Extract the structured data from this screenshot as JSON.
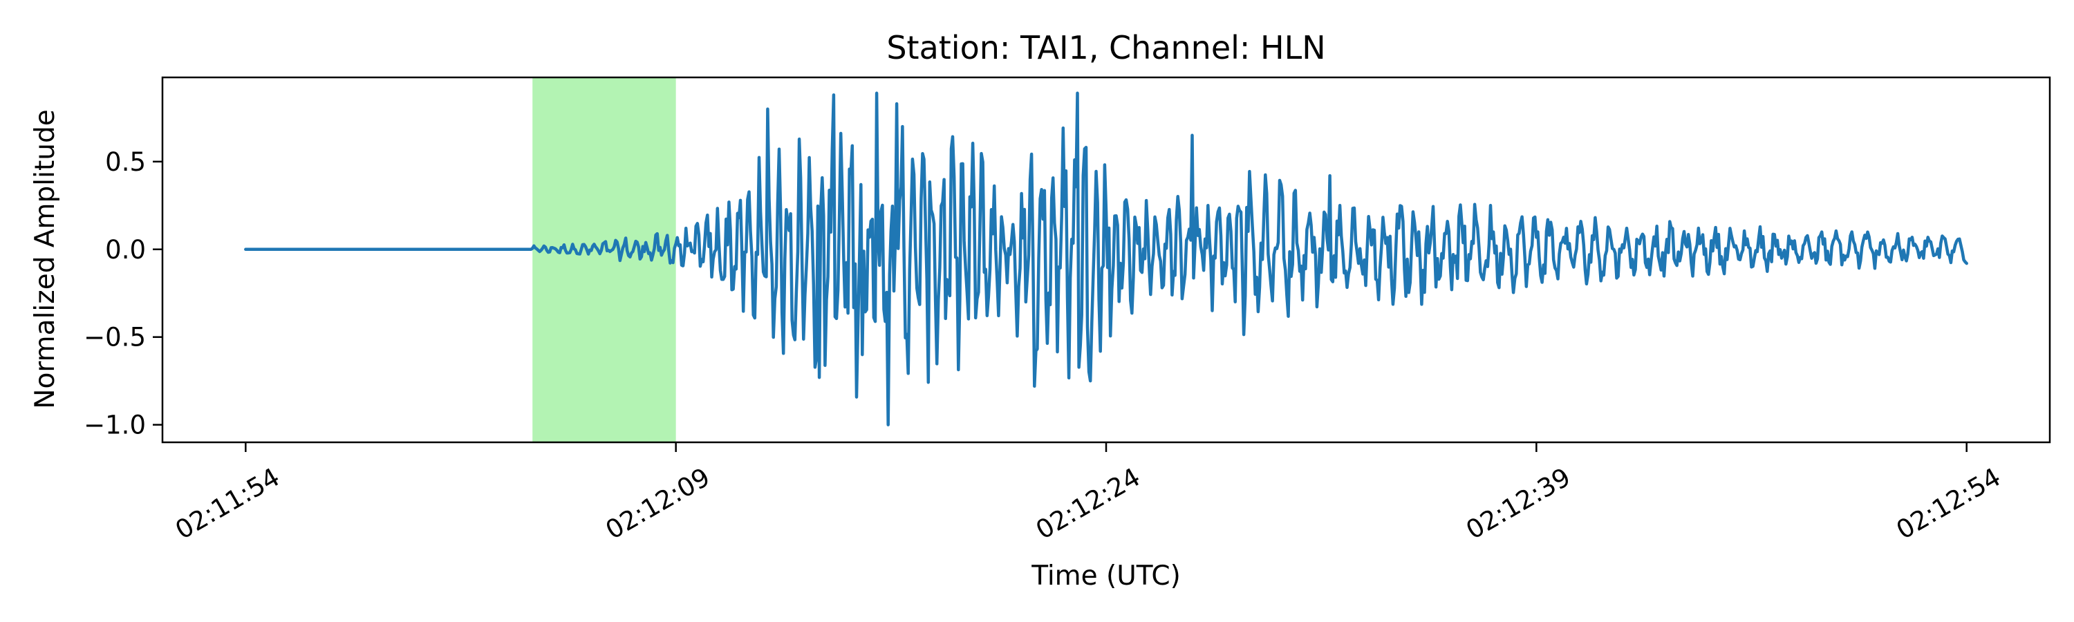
{
  "chart_data": {
    "type": "line",
    "title": "Station: TAI1, Channel: HLN",
    "xlabel": "Time (UTC)",
    "ylabel": "Normalized Amplitude",
    "x_ticks": [
      "02:11:54",
      "02:12:09",
      "02:12:24",
      "02:12:39",
      "02:12:54"
    ],
    "x_tick_values_s": [
      0,
      15,
      30,
      45,
      60
    ],
    "y_ticks": [
      "−1.0",
      "−0.5",
      "0.0",
      "0.5"
    ],
    "y_tick_values": [
      -1.0,
      -0.5,
      0.0,
      0.5
    ],
    "xlim_s": [
      -2.9,
      62.9
    ],
    "ylim": [
      -1.1,
      0.98
    ],
    "grid": false,
    "highlight_window": {
      "start_s": 10.0,
      "end_s": 15.0,
      "color": "#b3f3b3"
    },
    "series": [
      {
        "color": "#1f77b4",
        "start_s": 0,
        "end_s": 60,
        "onset_s": 10.0,
        "envelope": [
          [
            0,
            0.0
          ],
          [
            9.5,
            0.0
          ],
          [
            10.0,
            0.02
          ],
          [
            12.0,
            0.04
          ],
          [
            14.5,
            0.1
          ],
          [
            16.0,
            0.2
          ],
          [
            18.0,
            0.55
          ],
          [
            20.0,
            0.75
          ],
          [
            22.0,
            0.9
          ],
          [
            24.0,
            0.85
          ],
          [
            26.0,
            0.6
          ],
          [
            28.0,
            0.75
          ],
          [
            29.5,
            0.85
          ],
          [
            31.0,
            0.35
          ],
          [
            33.0,
            0.3
          ],
          [
            35.0,
            0.55
          ],
          [
            38.0,
            0.3
          ],
          [
            41.0,
            0.35
          ],
          [
            44.0,
            0.25
          ],
          [
            48.0,
            0.18
          ],
          [
            52.0,
            0.14
          ],
          [
            56.0,
            0.12
          ],
          [
            60.0,
            0.09
          ]
        ],
        "peaks": [
          {
            "t_s": 18.2,
            "value": 0.8
          },
          {
            "t_s": 20.0,
            "value": -0.73
          },
          {
            "t_s": 20.5,
            "value": 0.88
          },
          {
            "t_s": 21.5,
            "value": -0.6
          },
          {
            "t_s": 22.0,
            "value": 0.89
          },
          {
            "t_s": 22.4,
            "value": -1.0
          },
          {
            "t_s": 22.7,
            "value": 0.83
          },
          {
            "t_s": 27.5,
            "value": -0.78
          },
          {
            "t_s": 29.0,
            "value": 0.89
          },
          {
            "t_s": 33.0,
            "value": 0.65
          },
          {
            "t_s": 37.8,
            "value": 0.42
          }
        ],
        "end_value": -0.08
      }
    ]
  }
}
